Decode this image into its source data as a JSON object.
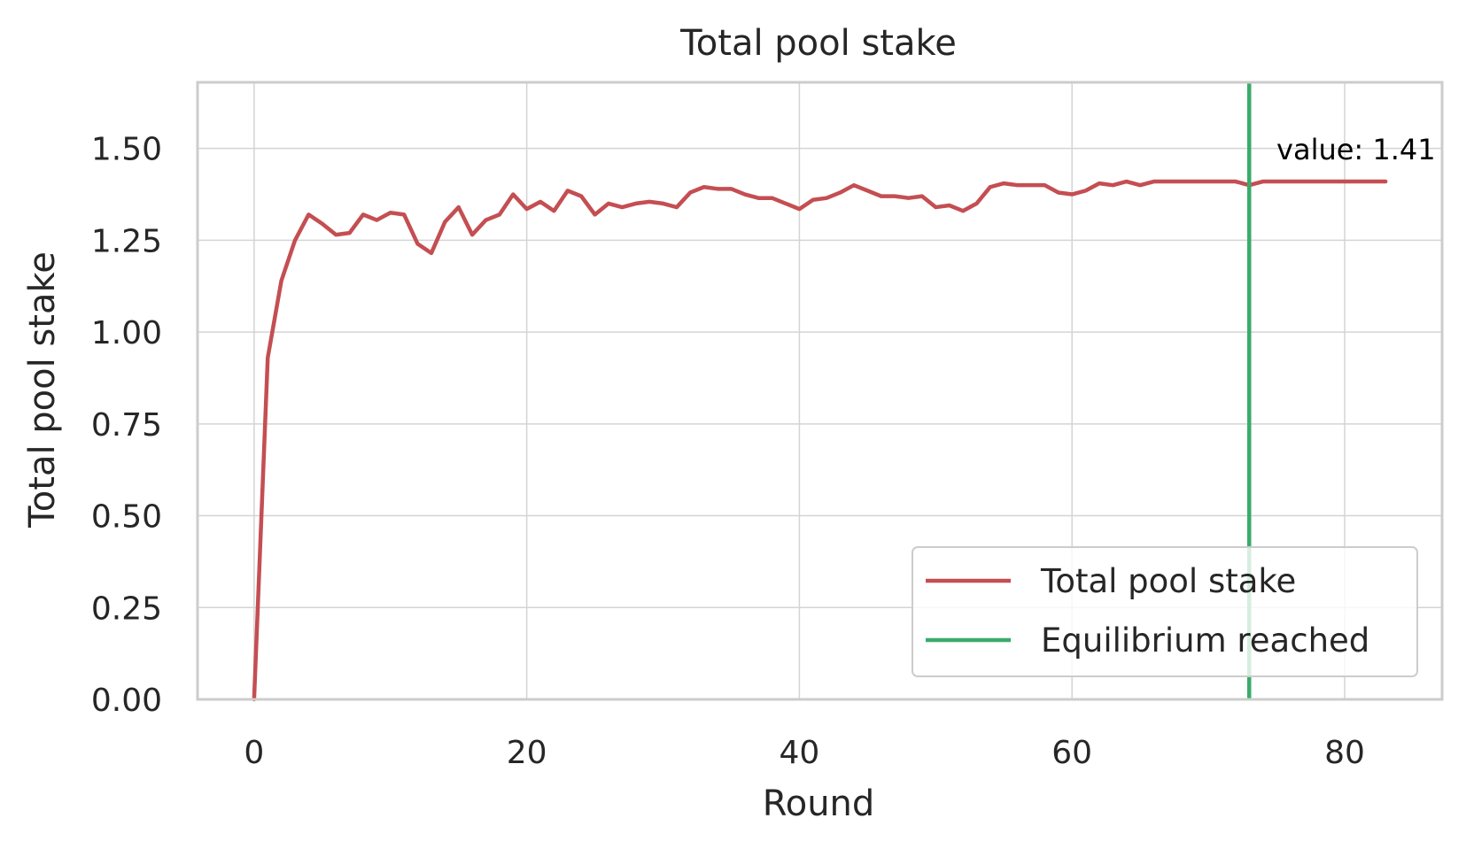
{
  "chart_data": {
    "type": "line",
    "title": "Total pool stake",
    "xlabel": "Round",
    "ylabel": "Total pool stake",
    "xlim": [
      -4.15,
      87.15
    ],
    "ylim": [
      0,
      1.68
    ],
    "x_ticks": [
      0,
      20,
      40,
      60,
      80
    ],
    "y_ticks": [
      0.0,
      0.25,
      0.5,
      0.75,
      1.0,
      1.25,
      1.5
    ],
    "x_tick_labels": [
      "0",
      "20",
      "40",
      "60",
      "80"
    ],
    "y_tick_labels": [
      "0.00",
      "0.25",
      "0.50",
      "0.75",
      "1.00",
      "1.25",
      "1.50"
    ],
    "grid": true,
    "legend_position": "lower-right",
    "series": [
      {
        "name": "Total pool stake",
        "color": "#c44e52",
        "x": [
          0,
          1,
          2,
          3,
          4,
          5,
          6,
          7,
          8,
          9,
          10,
          11,
          12,
          13,
          14,
          15,
          16,
          17,
          18,
          19,
          20,
          21,
          22,
          23,
          24,
          25,
          26,
          27,
          28,
          29,
          30,
          31,
          32,
          33,
          34,
          35,
          36,
          37,
          38,
          39,
          40,
          41,
          42,
          43,
          44,
          45,
          46,
          47,
          48,
          49,
          50,
          51,
          52,
          53,
          54,
          55,
          56,
          57,
          58,
          59,
          60,
          61,
          62,
          63,
          64,
          65,
          66,
          67,
          68,
          69,
          70,
          71,
          72,
          73,
          74,
          75,
          76,
          77,
          78,
          79,
          80,
          81,
          82,
          83
        ],
        "values": [
          0.0,
          0.93,
          1.14,
          1.25,
          1.32,
          1.295,
          1.265,
          1.27,
          1.32,
          1.305,
          1.325,
          1.32,
          1.24,
          1.215,
          1.3,
          1.34,
          1.265,
          1.305,
          1.32,
          1.375,
          1.335,
          1.355,
          1.33,
          1.385,
          1.37,
          1.32,
          1.35,
          1.34,
          1.35,
          1.355,
          1.35,
          1.34,
          1.38,
          1.395,
          1.39,
          1.39,
          1.375,
          1.365,
          1.365,
          1.35,
          1.335,
          1.36,
          1.365,
          1.38,
          1.4,
          1.385,
          1.37,
          1.37,
          1.365,
          1.37,
          1.34,
          1.345,
          1.33,
          1.35,
          1.395,
          1.405,
          1.4,
          1.4,
          1.4,
          1.38,
          1.375,
          1.385,
          1.405,
          1.4,
          1.41,
          1.4,
          1.41,
          1.41,
          1.41,
          1.41,
          1.41,
          1.41,
          1.41,
          1.4,
          1.41,
          1.41,
          1.41,
          1.41,
          1.41,
          1.41,
          1.41,
          1.41,
          1.41,
          1.41
        ]
      },
      {
        "name": "Equilibrium reached",
        "color": "#3aab6b",
        "type": "vline",
        "x": 73
      }
    ],
    "annotations": [
      {
        "text": "value: 1.41",
        "x": 75,
        "y": 1.47
      }
    ]
  }
}
